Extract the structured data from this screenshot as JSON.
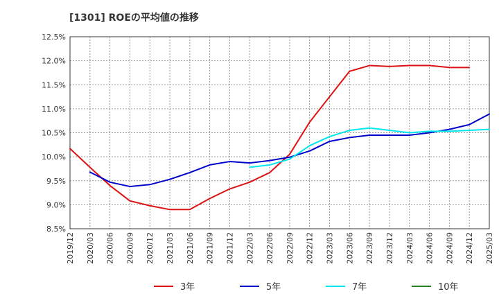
{
  "chart_data": {
    "type": "line",
    "title": "[1301]  ROEの平均値の推移",
    "xlabel": "",
    "ylabel": "",
    "ylim": [
      8.5,
      12.5
    ],
    "yticks": [
      8.5,
      9.0,
      9.5,
      10.0,
      10.5,
      11.0,
      11.5,
      12.0,
      12.5
    ],
    "ytick_labels": [
      "8.5%",
      "9.0%",
      "9.5%",
      "10.0%",
      "10.5%",
      "11.0%",
      "11.5%",
      "12.0%",
      "12.5%"
    ],
    "x_categories": [
      "2019/12",
      "2020/03",
      "2020/06",
      "2020/09",
      "2020/12",
      "2021/03",
      "2021/06",
      "2021/09",
      "2021/12",
      "2022/03",
      "2022/06",
      "2022/09",
      "2022/12",
      "2023/03",
      "2023/06",
      "2023/09",
      "2023/12",
      "2024/03",
      "2024/06",
      "2024/09",
      "2024/12",
      "2025/03"
    ],
    "grid": true,
    "legend_position": "bottom",
    "series": [
      {
        "name": "3年",
        "color": "#dd1111",
        "start_index": 0,
        "values": [
          10.17,
          9.78,
          9.4,
          9.08,
          8.98,
          8.9,
          8.9,
          9.13,
          9.33,
          9.47,
          9.67,
          10.05,
          10.72,
          11.25,
          11.78,
          11.9,
          11.88,
          11.9,
          11.9,
          11.86,
          11.86
        ]
      },
      {
        "name": "5年",
        "color": "#0000cc",
        "start_index": 1,
        "values": [
          9.68,
          9.47,
          9.38,
          9.42,
          9.53,
          9.67,
          9.83,
          9.9,
          9.87,
          9.92,
          9.99,
          10.12,
          10.32,
          10.4,
          10.45,
          10.45,
          10.45,
          10.5,
          10.57,
          10.67,
          10.89
        ]
      },
      {
        "name": "7年",
        "color": "#00e5ee",
        "start_index": 9,
        "values": [
          9.78,
          9.83,
          9.95,
          10.23,
          10.42,
          10.55,
          10.6,
          10.55,
          10.5,
          10.53,
          10.53,
          10.55,
          10.57
        ]
      },
      {
        "name": "10年",
        "color": "#228822",
        "start_index": 0,
        "values": []
      }
    ]
  }
}
